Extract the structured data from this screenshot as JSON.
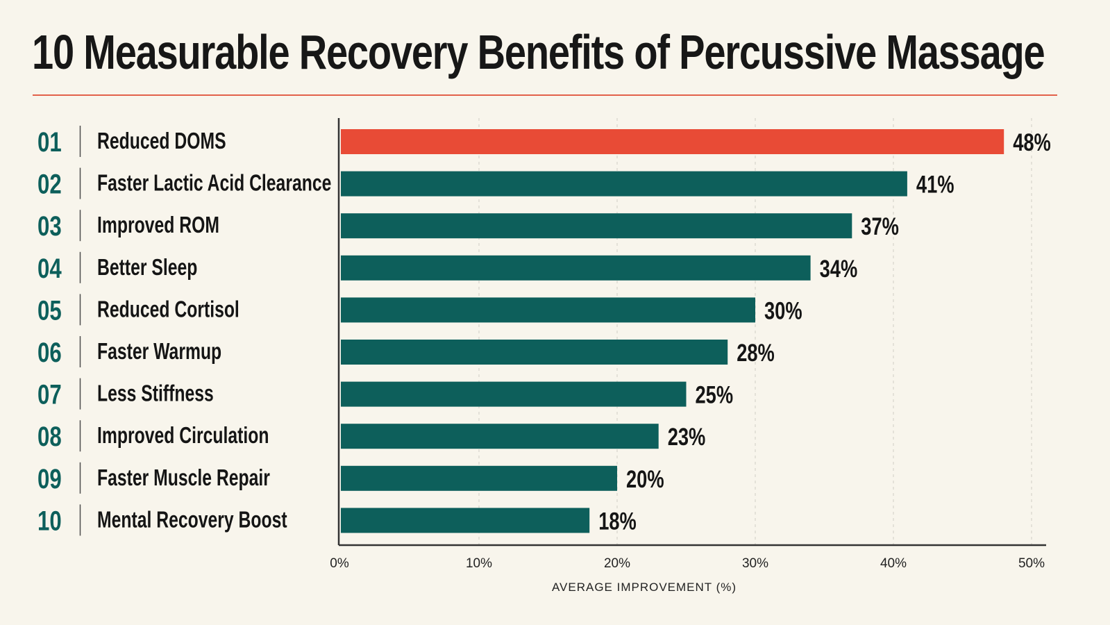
{
  "title": "10 Measurable Recovery Benefits of Percussive Massage",
  "colors": {
    "background": "#f8f5ec",
    "highlight": "#e84b36",
    "bar": "#0d5f5b",
    "text": "#151515",
    "rank": "#0d5f5b",
    "rule": "#e2614a",
    "axis": "#333333",
    "grid": "#d7d4cc"
  },
  "chart_data": {
    "type": "bar",
    "orientation": "horizontal",
    "title": "10 Measurable Recovery Benefits of Percussive Massage",
    "xlabel": "AVERAGE IMPROVEMENT (%)",
    "ylabel": "",
    "xlim": [
      0,
      50
    ],
    "grid": true,
    "legend": "none",
    "ranks": [
      "01",
      "02",
      "03",
      "04",
      "05",
      "06",
      "07",
      "08",
      "09",
      "10"
    ],
    "categories": [
      "Reduced DOMS",
      "Faster Lactic Acid Clearance",
      "Improved ROM",
      "Better Sleep",
      "Reduced Cortisol",
      "Faster Warmup",
      "Less Stiffness",
      "Improved Circulation",
      "Faster Muscle Repair",
      "Mental Recovery Boost"
    ],
    "values": [
      48,
      41,
      37,
      34,
      30,
      28,
      25,
      23,
      20,
      18
    ],
    "value_labels": [
      "48%",
      "41%",
      "37%",
      "34%",
      "30%",
      "28%",
      "25%",
      "23%",
      "20%",
      "18%"
    ],
    "x_ticks": [
      0,
      10,
      20,
      30,
      40,
      50
    ],
    "x_tick_labels": [
      "0%",
      "10%",
      "20%",
      "30%",
      "40%",
      "50%"
    ],
    "highlighted_index": 0
  }
}
